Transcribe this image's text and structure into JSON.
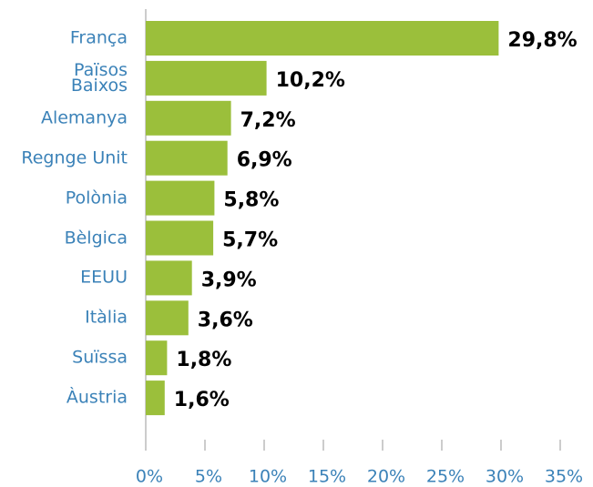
{
  "chart_data": {
    "type": "bar",
    "orientation": "horizontal",
    "categories": [
      "França",
      "Països\nBaixos",
      "Alemanya",
      "Regnge Unit",
      "Polònia",
      "Bèlgica",
      "EEUU",
      "Itàlia",
      "Suïssa",
      "Àustria"
    ],
    "values": [
      29.8,
      10.2,
      7.2,
      6.9,
      5.8,
      5.7,
      3.9,
      3.6,
      1.8,
      1.6
    ],
    "value_labels": [
      "29,8%",
      "10,2%",
      "7,2%",
      "6,9%",
      "5,8%",
      "5,7%",
      "3,9%",
      "3,6%",
      "1,8%",
      "1,6%"
    ],
    "color": "#9bbf3b",
    "xlim": [
      0,
      35
    ],
    "xticks": [
      {
        "value": 0,
        "label": "0%"
      },
      {
        "value": 5,
        "label": "5%"
      },
      {
        "value": 10,
        "label": "10%"
      },
      {
        "value": 15,
        "label": "15%"
      },
      {
        "value": 20,
        "label": "20%"
      },
      {
        "value": 25,
        "label": "25%"
      },
      {
        "value": 30,
        "label": "30%"
      },
      {
        "value": 35,
        "label": "35%"
      }
    ],
    "grid": false
  }
}
